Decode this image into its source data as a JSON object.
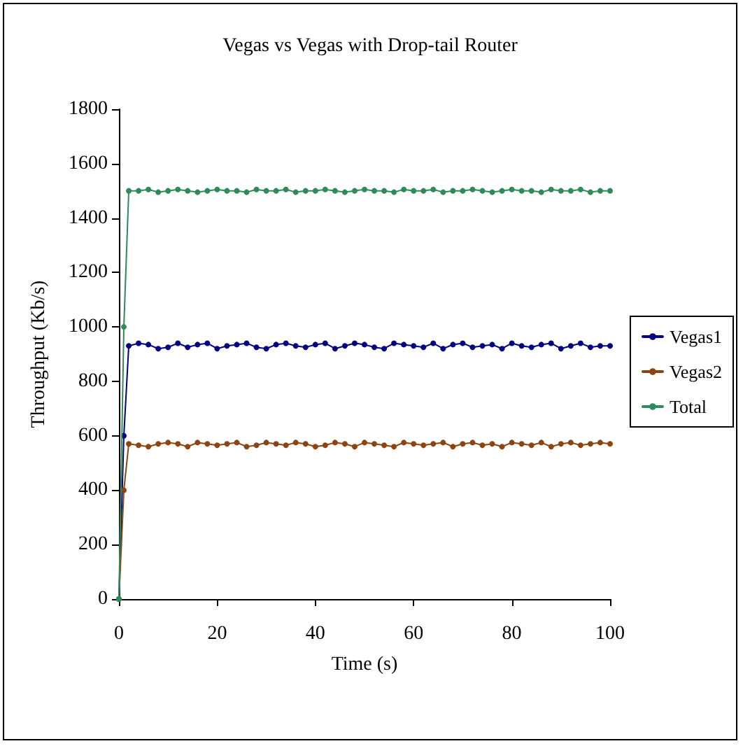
{
  "chart_data": {
    "type": "line",
    "title": "Vegas vs Vegas with Drop-tail Router",
    "xlabel": "Time (s)",
    "ylabel": "Throughput (Kb/s)",
    "x": [
      0,
      1,
      2,
      4,
      6,
      8,
      10,
      12,
      14,
      16,
      18,
      20,
      22,
      24,
      26,
      28,
      30,
      32,
      34,
      36,
      38,
      40,
      42,
      44,
      46,
      48,
      50,
      52,
      54,
      56,
      58,
      60,
      62,
      64,
      66,
      68,
      70,
      72,
      74,
      76,
      78,
      80,
      82,
      84,
      86,
      88,
      90,
      92,
      94,
      96,
      98,
      100
    ],
    "series": [
      {
        "name": "Vegas1",
        "color": "#000080",
        "values": [
          0,
          600,
          930,
          940,
          935,
          920,
          925,
          940,
          925,
          935,
          940,
          920,
          930,
          935,
          940,
          925,
          920,
          935,
          940,
          930,
          925,
          935,
          940,
          920,
          930,
          940,
          935,
          925,
          920,
          940,
          935,
          930,
          925,
          940,
          920,
          935,
          940,
          925,
          930,
          935,
          920,
          940,
          930,
          925,
          935,
          940,
          920,
          930,
          940,
          925,
          930,
          930
        ]
      },
      {
        "name": "Vegas2",
        "color": "#8b4513",
        "values": [
          0,
          400,
          570,
          565,
          560,
          570,
          575,
          570,
          560,
          575,
          570,
          565,
          570,
          575,
          560,
          565,
          575,
          570,
          565,
          575,
          570,
          560,
          565,
          575,
          570,
          560,
          575,
          570,
          565,
          560,
          575,
          570,
          565,
          570,
          575,
          560,
          570,
          575,
          565,
          570,
          560,
          575,
          570,
          565,
          575,
          560,
          570,
          575,
          565,
          570,
          575,
          570
        ]
      },
      {
        "name": "Total",
        "color": "#2e8b57",
        "values": [
          0,
          1000,
          1500,
          1500,
          1505,
          1495,
          1500,
          1505,
          1500,
          1495,
          1500,
          1505,
          1500,
          1500,
          1495,
          1505,
          1500,
          1500,
          1505,
          1495,
          1500,
          1500,
          1505,
          1500,
          1495,
          1500,
          1505,
          1500,
          1500,
          1495,
          1505,
          1500,
          1500,
          1505,
          1495,
          1500,
          1500,
          1505,
          1500,
          1495,
          1500,
          1505,
          1500,
          1500,
          1495,
          1505,
          1500,
          1500,
          1505,
          1495,
          1500,
          1500
        ]
      }
    ],
    "xlim": [
      0,
      100
    ],
    "xticks": [
      0,
      20,
      40,
      60,
      80,
      100
    ],
    "ylim": [
      0,
      1800
    ],
    "yticks": [
      0,
      200,
      400,
      600,
      800,
      1000,
      1200,
      1400,
      1600,
      1800
    ],
    "grid": false,
    "legend": "right",
    "marker": "circle",
    "line_style": "solid"
  }
}
